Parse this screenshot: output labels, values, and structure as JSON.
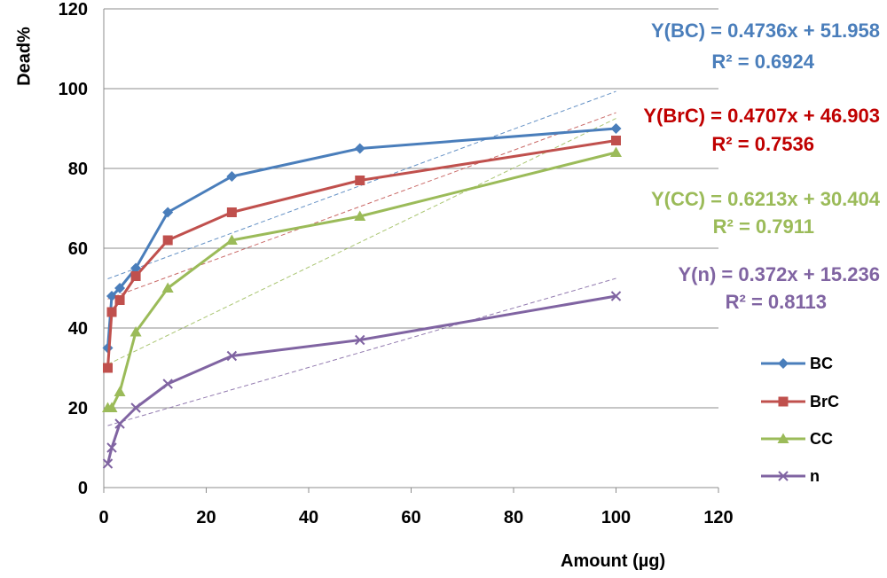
{
  "chart_data": {
    "type": "line",
    "xlabel": "Amount (µg)",
    "ylabel": "Dead%",
    "xlim": [
      0,
      120
    ],
    "ylim": [
      0,
      120
    ],
    "x_ticks": [
      "0",
      "20",
      "40",
      "60",
      "80",
      "100",
      "120"
    ],
    "y_ticks": [
      "0",
      "20",
      "40",
      "60",
      "80",
      "100",
      "120"
    ],
    "grid": "horizontal",
    "legend_position": "right",
    "series": [
      {
        "name": "BC",
        "color": "#4a7ebb",
        "marker": "diamond",
        "x": [
          0.78,
          1.56,
          3.125,
          6.25,
          12.5,
          25,
          50,
          100
        ],
        "values": [
          35,
          48,
          50,
          55,
          69,
          78,
          85,
          90
        ],
        "trendline": {
          "slope": 0.4736,
          "intercept": 51.958
        },
        "equation": "Y(BC) = 0.4736x + 51.958",
        "r2": "R² = 0.6924"
      },
      {
        "name": "BrC",
        "color": "#c0504d",
        "marker": "square",
        "x": [
          0.78,
          1.56,
          3.125,
          6.25,
          12.5,
          25,
          50,
          100
        ],
        "values": [
          30,
          44,
          47,
          53,
          62,
          69,
          77,
          87
        ],
        "trendline": {
          "slope": 0.4707,
          "intercept": 46.903
        },
        "equation": "Y(BrC) = 0.4707x + 46.903",
        "r2": "R² = 0.7536"
      },
      {
        "name": "CC",
        "color": "#9bbb59",
        "marker": "triangle",
        "x": [
          0.78,
          1.56,
          3.125,
          6.25,
          12.5,
          25,
          50,
          100
        ],
        "values": [
          20,
          20,
          24,
          39,
          50,
          62,
          68,
          84
        ],
        "trendline": {
          "slope": 0.6213,
          "intercept": 30.404
        },
        "equation": "Y(CC) = 0.6213x + 30.404",
        "r2": "R² = 0.7911"
      },
      {
        "name": "n",
        "color": "#8064a2",
        "marker": "x",
        "x": [
          0.78,
          1.56,
          3.125,
          6.25,
          12.5,
          25,
          50,
          100
        ],
        "values": [
          6,
          10,
          16,
          20,
          26,
          33,
          37,
          48
        ],
        "trendline": {
          "slope": 0.372,
          "intercept": 15.236
        },
        "equation": "Y(n) = 0.372x + 15.236",
        "r2": "R² = 0.8113"
      }
    ]
  }
}
